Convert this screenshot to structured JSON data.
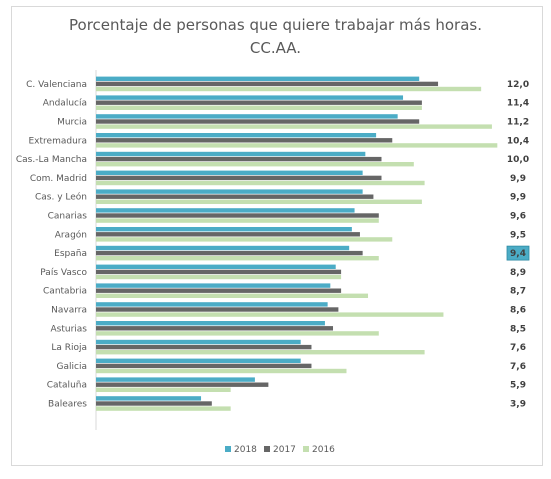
{
  "chart_data": {
    "type": "bar",
    "orientation": "horizontal",
    "title": "Porcentaje de personas que quiere trabajar más horas.",
    "subtitle": "CC.AA.",
    "categories": [
      "C. Valenciana",
      "Andalucía",
      "Murcia",
      "Extremadura",
      "Cas.-La Mancha",
      "Com. Madrid",
      "Cas. y León",
      "Canarias",
      "Aragón",
      "España",
      "País Vasco",
      "Cantabria",
      "Navarra",
      "Asturias",
      "La Rioja",
      "Galicia",
      "Cataluña",
      "Baleares"
    ],
    "value_labels": [
      "12,0",
      "11,4",
      "11,2",
      "10,4",
      "10,0",
      "9,9",
      "9,9",
      "9,6",
      "9,5",
      "9,4",
      "8,9",
      "8,7",
      "8,6",
      "8,5",
      "7,6",
      "7,6",
      "5,9",
      "3,9"
    ],
    "highlight_category": "España",
    "series": [
      {
        "name": "2018",
        "color": "#4bacc6",
        "values": [
          12.0,
          11.4,
          11.2,
          10.4,
          10.0,
          9.9,
          9.9,
          9.6,
          9.5,
          9.4,
          8.9,
          8.7,
          8.6,
          8.5,
          7.6,
          7.6,
          5.9,
          3.9
        ]
      },
      {
        "name": "2017",
        "color": "#666666",
        "values": [
          12.7,
          12.1,
          12.0,
          11.0,
          10.6,
          10.6,
          10.3,
          10.5,
          9.8,
          9.9,
          9.1,
          9.1,
          9.0,
          8.8,
          8.0,
          8.0,
          6.4,
          4.3
        ]
      },
      {
        "name": "2016",
        "color": "#c4dfb0",
        "values": [
          14.3,
          12.1,
          14.7,
          14.9,
          11.8,
          12.2,
          12.1,
          10.5,
          11.0,
          10.5,
          9.1,
          10.1,
          12.9,
          10.5,
          12.2,
          9.3,
          5.0,
          5.0
        ]
      }
    ],
    "xlim": [
      0,
      15
    ],
    "legend_position": "bottom",
    "grid": false
  }
}
